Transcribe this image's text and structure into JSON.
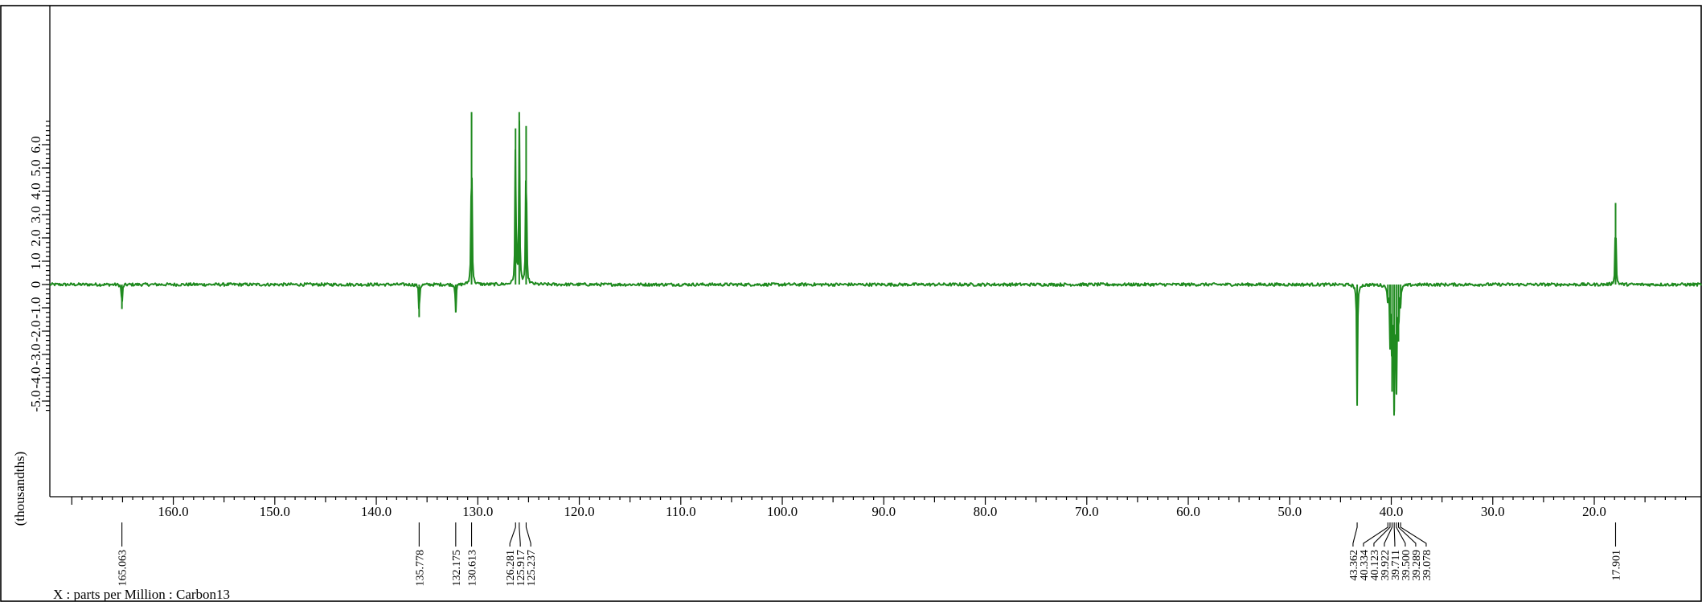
{
  "chart_data": {
    "type": "line",
    "title": "",
    "xlabel": "X : parts per Million : Carbon13",
    "ylabel": "(thousandths)",
    "x_reversed": true,
    "xlim": [
      170.5,
      10.8
    ],
    "ylim": [
      -5.3,
      7.2
    ],
    "x_ticks": [
      "160.0",
      "150.0",
      "140.0",
      "130.0",
      "120.0",
      "110.0",
      "100.0",
      "90.0",
      "80.0",
      "70.0",
      "60.0",
      "50.0",
      "40.0",
      "30.0",
      "20.0"
    ],
    "y_ticks": [
      "6.0",
      "5.0",
      "4.0",
      "3.0",
      "2.0",
      "1.0",
      "0",
      "-1.0",
      "-2.0",
      "-3.0",
      "-4.0",
      "-5.0"
    ],
    "series": [
      {
        "color": "#1f8a1f",
        "peaks": [
          {
            "ppm": 165.063,
            "intensity": -1.05
          },
          {
            "ppm": 135.778,
            "intensity": -1.4
          },
          {
            "ppm": 132.175,
            "intensity": -1.2
          },
          {
            "ppm": 130.613,
            "intensity": 7.4
          },
          {
            "ppm": 126.281,
            "intensity": 6.7
          },
          {
            "ppm": 125.917,
            "intensity": 7.4
          },
          {
            "ppm": 125.237,
            "intensity": 6.8
          },
          {
            "ppm": 43.362,
            "intensity": -5.2
          },
          {
            "ppm": 40.334,
            "intensity": -0.8
          },
          {
            "ppm": 40.123,
            "intensity": -2.35
          },
          {
            "ppm": 39.922,
            "intensity": -4.6
          },
          {
            "ppm": 39.711,
            "intensity": -5.45
          },
          {
            "ppm": 39.5,
            "intensity": -4.7
          },
          {
            "ppm": 39.289,
            "intensity": -2.45
          },
          {
            "ppm": 39.078,
            "intensity": -0.85
          },
          {
            "ppm": 17.901,
            "intensity": 3.5
          }
        ]
      }
    ],
    "peak_labels": [
      "165.063",
      "135.778",
      "132.175",
      "130.613",
      "126.281",
      "125.917",
      "125.237",
      "43.362",
      "40.334",
      "40.123",
      "39.922",
      "39.711",
      "39.500",
      "39.289",
      "39.078",
      "17.901"
    ],
    "peak_label_groups": [
      {
        "labels_index": [
          0
        ],
        "ppm": [
          165.063
        ]
      },
      {
        "labels_index": [
          1
        ],
        "ppm": [
          135.778
        ]
      },
      {
        "labels_index": [
          2
        ],
        "ppm": [
          132.175
        ]
      },
      {
        "labels_index": [
          3
        ],
        "ppm": [
          130.613
        ]
      },
      {
        "labels_index": [
          4,
          5,
          6
        ],
        "ppm": [
          126.281,
          125.917,
          125.237
        ]
      },
      {
        "labels_index": [
          7,
          8,
          9,
          10,
          11,
          12,
          13,
          14
        ],
        "ppm": [
          43.362,
          40.334,
          40.123,
          39.922,
          39.711,
          39.5,
          39.289,
          39.078
        ]
      },
      {
        "labels_index": [
          15
        ],
        "ppm": [
          17.901
        ]
      }
    ],
    "grid": false,
    "legend": "none"
  }
}
